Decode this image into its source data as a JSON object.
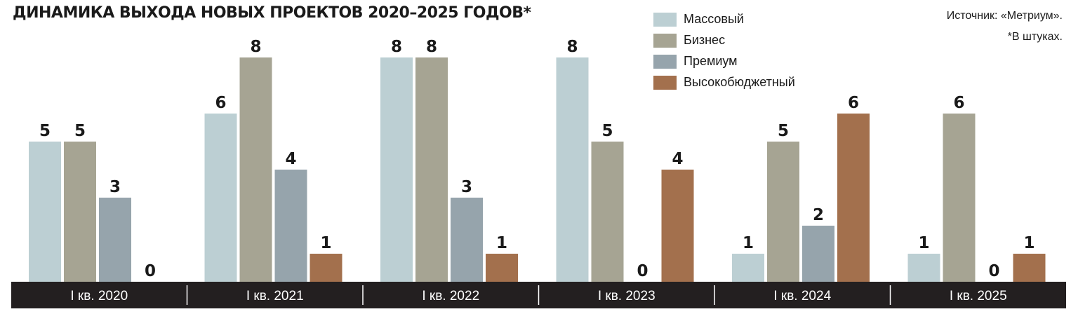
{
  "title": "ДИНАМИКА ВЫХОДА НОВЫХ ПРОЕКТОВ 2020–2025 ГОДОВ*",
  "source_note": "Источник: «Метриум».",
  "unit_note": "*В штуках.",
  "colors": {
    "axis_band": "#231f20",
    "divider": "#ffffff"
  },
  "chart_data": {
    "type": "bar",
    "title": "ДИНАМИКА ВЫХОДА НОВЫХ ПРОЕКТОВ 2020–2025 ГОДОВ*",
    "xlabel": "",
    "ylabel": "",
    "ylim": [
      0,
      8
    ],
    "grid": false,
    "legend_position": "top-right",
    "categories": [
      "I кв. 2020",
      "I кв. 2021",
      "I кв. 2022",
      "I кв. 2023",
      "I кв. 2024",
      "I кв. 2025"
    ],
    "series": [
      {
        "name": "Массовый",
        "color": "#bccfd3",
        "values": [
          5,
          6,
          8,
          8,
          1,
          1
        ]
      },
      {
        "name": "Бизнес",
        "color": "#a6a493",
        "values": [
          5,
          8,
          8,
          5,
          5,
          6
        ]
      },
      {
        "name": "Премиум",
        "color": "#96a4ac",
        "values": [
          3,
          4,
          3,
          0,
          2,
          0
        ]
      },
      {
        "name": "Высокобюджетный",
        "color": "#a3704d",
        "values": [
          0,
          1,
          1,
          4,
          6,
          1
        ]
      }
    ]
  }
}
